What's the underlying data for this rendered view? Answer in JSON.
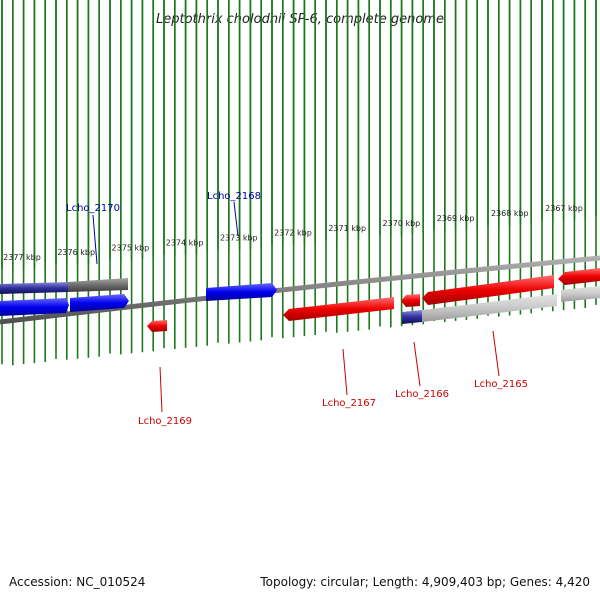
{
  "title": "Leptothrix cholodnii SP-6, complete genome",
  "footer": {
    "accession": "Accession: NC_010524",
    "summary": "Topology: circular; Length: 4,909,403 bp; Genes: 4,420"
  },
  "colors": {
    "forward_gene": "#0000ee",
    "reverse_gene": "#ee0000",
    "backbone": "#888888",
    "tick": "#1a7a1a"
  },
  "scale_ticks": [
    {
      "label": "2377 kbp"
    },
    {
      "label": "2376 kbp"
    },
    {
      "label": "2375 kbp"
    },
    {
      "label": "2374 kbp"
    },
    {
      "label": "2373 kbp"
    },
    {
      "label": "2372 kbp"
    },
    {
      "label": "2371 kbp"
    },
    {
      "label": "2370 kbp"
    },
    {
      "label": "2369 kbp"
    },
    {
      "label": "2368 kbp"
    },
    {
      "label": "2367 kbp"
    }
  ],
  "gene_labels": [
    {
      "name": "Lcho_2170",
      "strand": "forward"
    },
    {
      "name": "Lcho_2168",
      "strand": "forward"
    },
    {
      "name": "Lcho_2169",
      "strand": "reverse"
    },
    {
      "name": "Lcho_2167",
      "strand": "reverse"
    },
    {
      "name": "Lcho_2166",
      "strand": "reverse"
    },
    {
      "name": "Lcho_2165",
      "strand": "reverse"
    }
  ]
}
